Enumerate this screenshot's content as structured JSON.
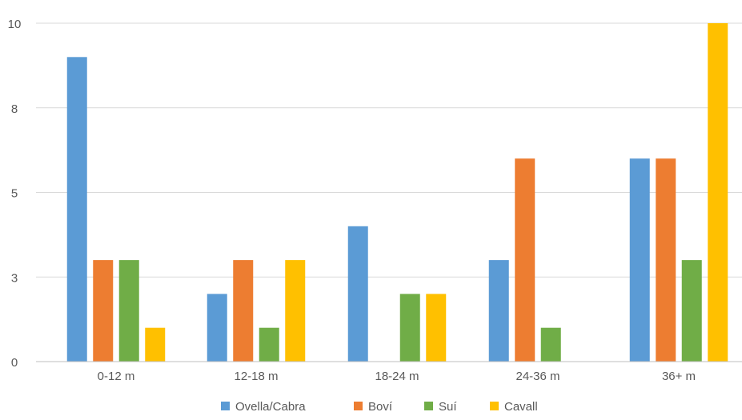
{
  "chart_data": {
    "type": "bar",
    "categories": [
      "0-12 m",
      "12-18 m",
      "18-24 m",
      "24-36 m",
      "36+ m"
    ],
    "series": [
      {
        "name": "Ovella/Cabra",
        "color": "#5B9BD5",
        "values": [
          9,
          2,
          4,
          3,
          6
        ]
      },
      {
        "name": "Boví",
        "color": "#ED7D31",
        "values": [
          3,
          3,
          0,
          6,
          6
        ]
      },
      {
        "name": "Suí",
        "color": "#70AD47",
        "values": [
          3,
          1,
          2,
          1,
          3
        ]
      },
      {
        "name": "Cavall",
        "color": "#FFC000",
        "values": [
          1,
          3,
          2,
          0,
          10
        ]
      }
    ],
    "y_ticks": [
      "0",
      "3",
      "5",
      "8",
      "10"
    ],
    "ylim": [
      0,
      10
    ],
    "grid": true,
    "legend_position": "bottom",
    "title": "",
    "xlabel": "",
    "ylabel": ""
  }
}
